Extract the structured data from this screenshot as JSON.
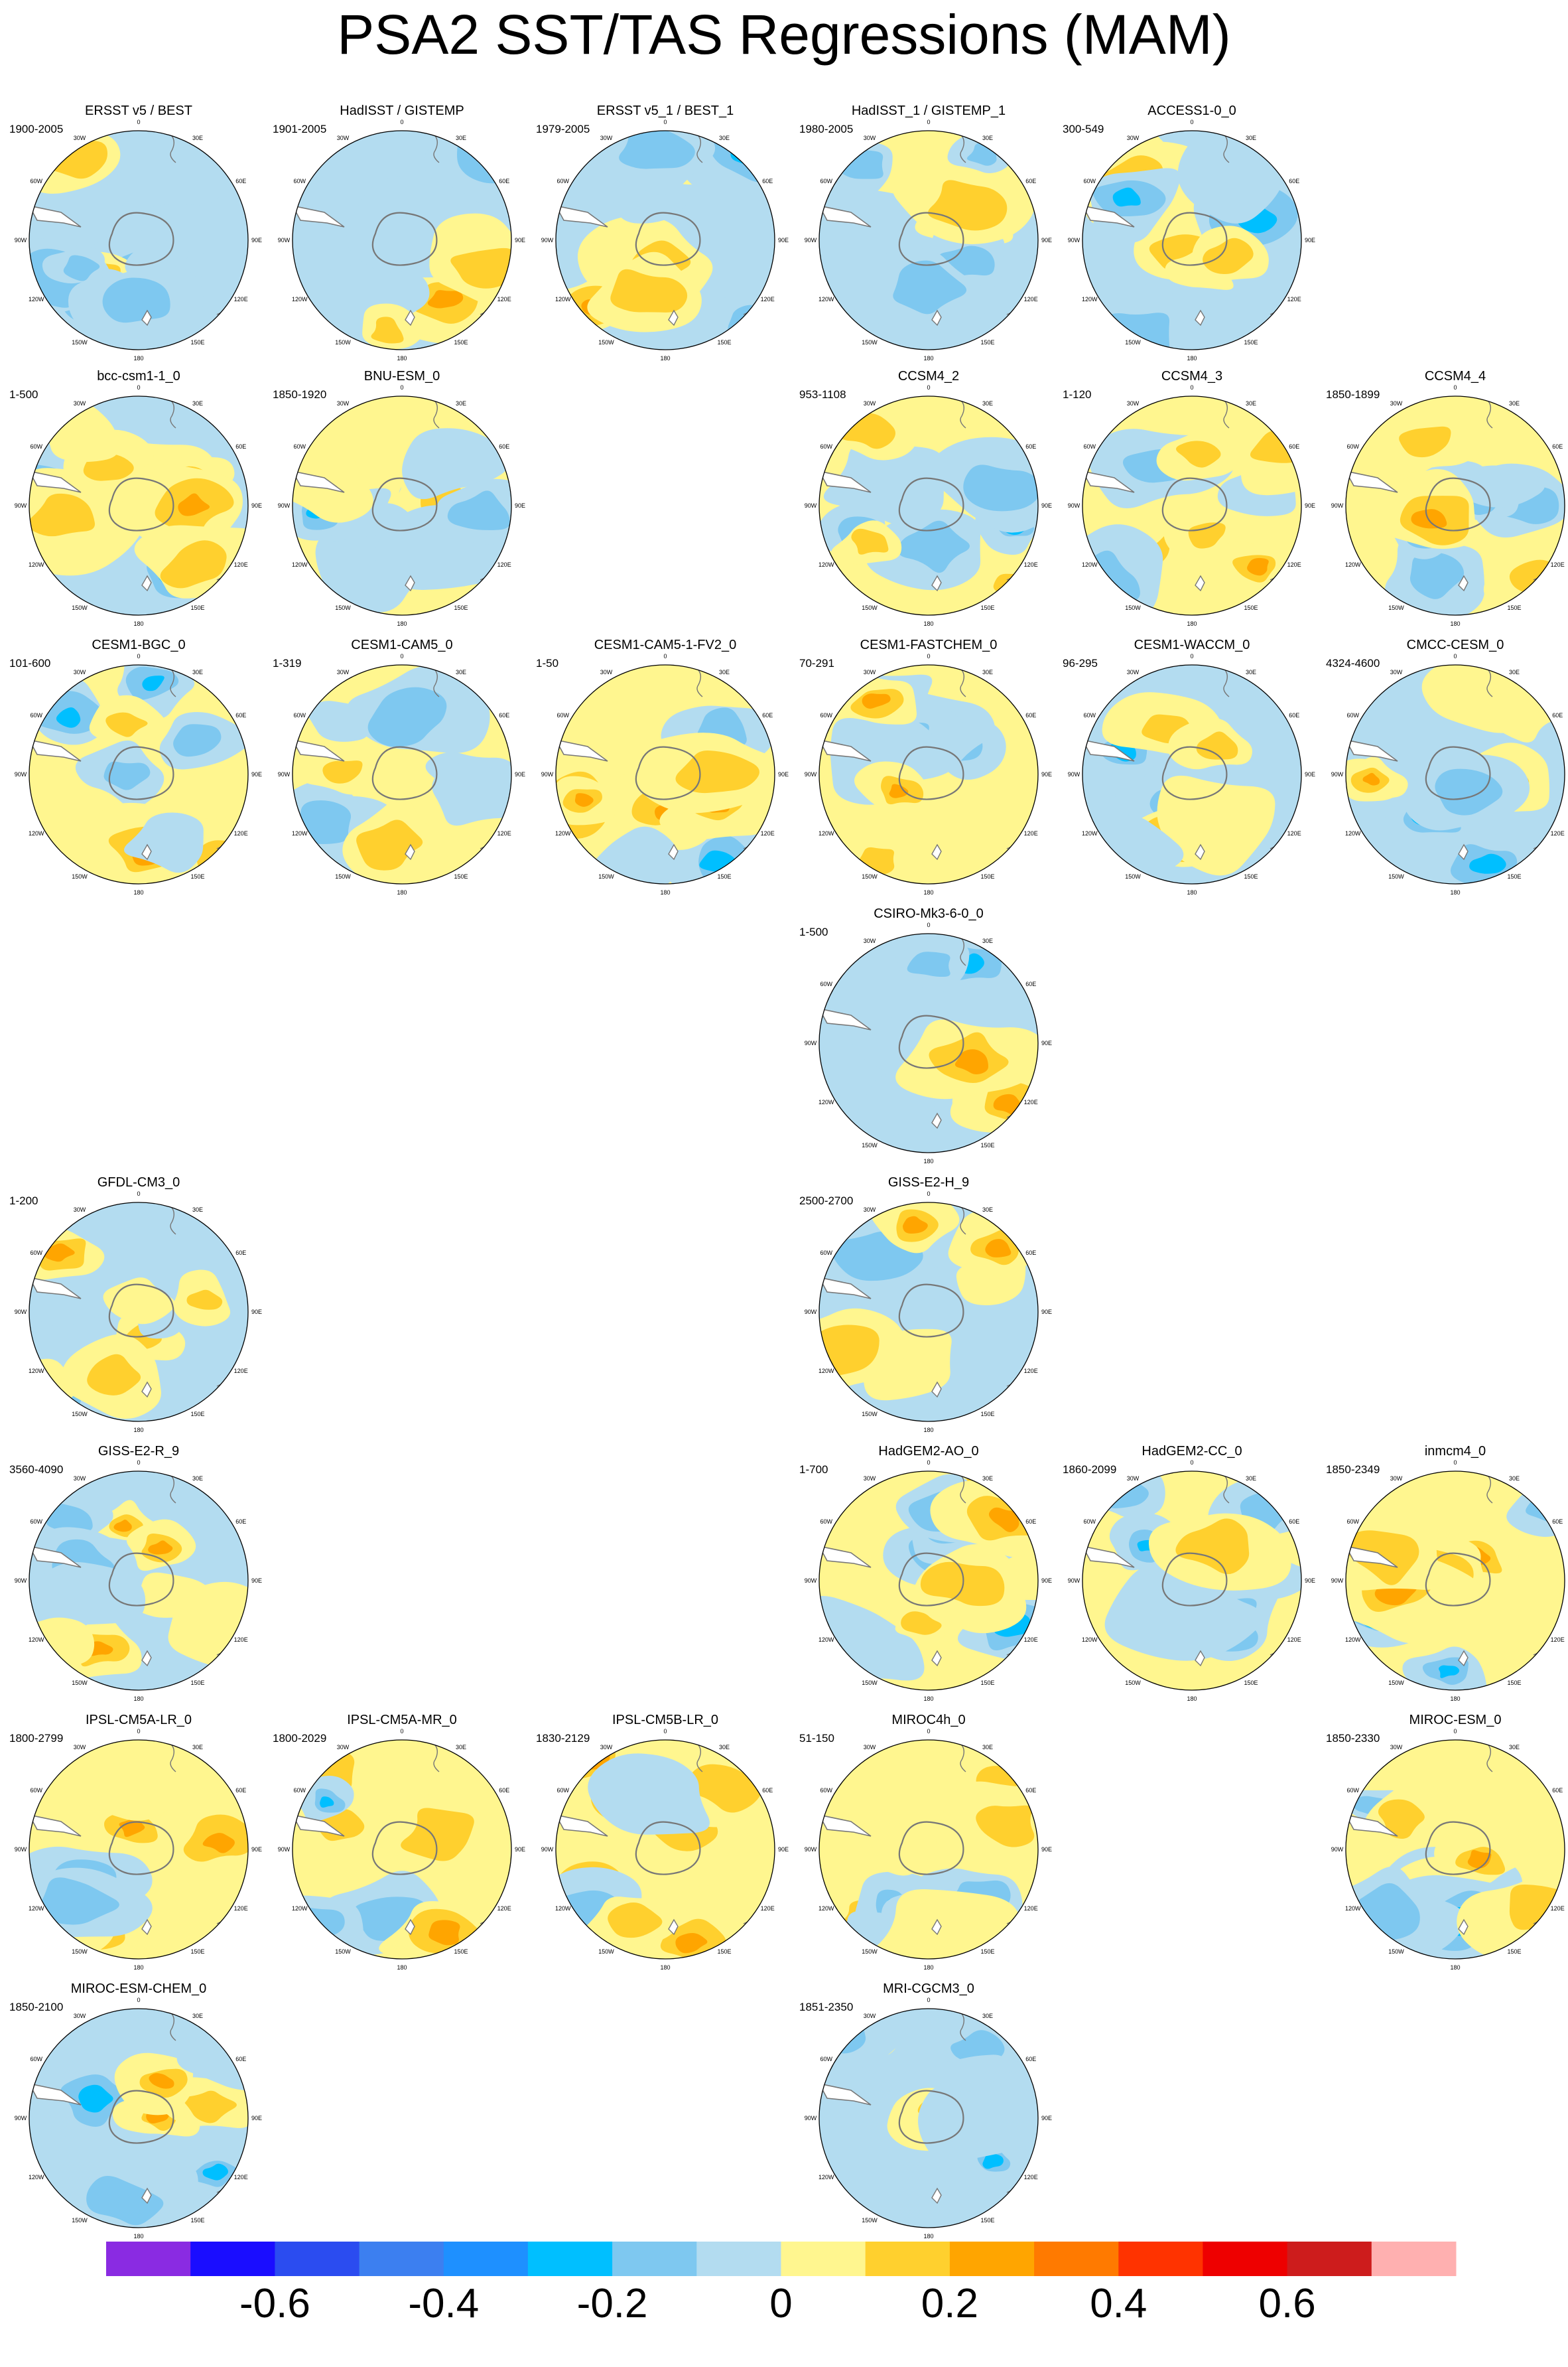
{
  "title": "PSA2 SST/TAS Regressions (MAM)",
  "chart_data": {
    "type": "polar-contour-map-grid",
    "title": "PSA2 SST/TAS Regressions (MAM)",
    "map_axis_labels": [
      "0",
      "30E",
      "60E",
      "90E",
      "120E",
      "150E",
      "180",
      "150W",
      "120W",
      "90W",
      "60W",
      "30W"
    ],
    "panels": [
      {
        "name": "ERSST v5 / BEST",
        "years": "1900-2005"
      },
      {
        "name": "HadISST / GISTEMP",
        "years": "1901-2005"
      },
      {
        "name": "ERSST v5_1 / BEST_1",
        "years": "1979-2005"
      },
      {
        "name": "HadISST_1 / GISTEMP_1",
        "years": "1980-2005"
      },
      {
        "name": "ACCESS1-0_0",
        "years": "300-549"
      },
      {
        "name": "bcc-csm1-1_0",
        "years": "1-500"
      },
      {
        "name": "BNU-ESM_0",
        "years": "1850-1920"
      },
      {
        "name": "CCSM4_2",
        "years": "953-1108"
      },
      {
        "name": "CCSM4_3",
        "years": "1-120"
      },
      {
        "name": "CCSM4_4",
        "years": "1850-1899"
      },
      {
        "name": "CESM1-BGC_0",
        "years": "101-600"
      },
      {
        "name": "CESM1-CAM5_0",
        "years": "1-319"
      },
      {
        "name": "CESM1-CAM5-1-FV2_0",
        "years": "1-50"
      },
      {
        "name": "CESM1-FASTCHEM_0",
        "years": "70-291"
      },
      {
        "name": "CESM1-WACCM_0",
        "years": "96-295"
      },
      {
        "name": "CMCC-CESM_0",
        "years": "4324-4600"
      },
      {
        "name": "CSIRO-Mk3-6-0_0",
        "years": "1-500"
      },
      {
        "name": "GFDL-CM3_0",
        "years": "1-200"
      },
      {
        "name": "GISS-E2-H_9",
        "years": "2500-2700"
      },
      {
        "name": "GISS-E2-R_9",
        "years": "3560-4090"
      },
      {
        "name": "HadGEM2-AO_0",
        "years": "1-700"
      },
      {
        "name": "HadGEM2-CC_0",
        "years": "1860-2099"
      },
      {
        "name": "inmcm4_0",
        "years": "1850-2349"
      },
      {
        "name": "IPSL-CM5A-LR_0",
        "years": "1800-2799"
      },
      {
        "name": "IPSL-CM5A-MR_0",
        "years": "1800-2029"
      },
      {
        "name": "IPSL-CM5B-LR_0",
        "years": "1830-2129"
      },
      {
        "name": "MIROC4h_0",
        "years": "51-150"
      },
      {
        "name": "MIROC-ESM_0",
        "years": "1850-2330"
      },
      {
        "name": "MIROC-ESM-CHEM_0",
        "years": "1850-2100"
      },
      {
        "name": "MRI-CGCM3_0",
        "years": "1851-2350"
      }
    ],
    "colorbar": {
      "levels": [
        -0.7,
        -0.6,
        -0.5,
        -0.4,
        -0.3,
        -0.2,
        -0.1,
        0,
        0.1,
        0.2,
        0.3,
        0.4,
        0.5,
        0.6,
        0.7
      ],
      "colors": [
        "#8a2be2",
        "#1a0dff",
        "#2b4cf0",
        "#3c7ff0",
        "#1e90ff",
        "#00bfff",
        "#7ec8f0",
        "#b3dcf0",
        "#fff68f",
        "#ffd02e",
        "#ffa500",
        "#ff7a00",
        "#ff3300",
        "#ee0000",
        "#cd1c1c",
        "#ffb0b0"
      ],
      "tick_labels": [
        "-0.6",
        "-0.4",
        "-0.2",
        "0",
        "0.2",
        "0.4",
        "0.6"
      ]
    }
  },
  "colors": {
    "map_neutral_positive": "#fff68f",
    "map_neutral_negative": "#b3dcf0",
    "coastline": "#777777"
  }
}
